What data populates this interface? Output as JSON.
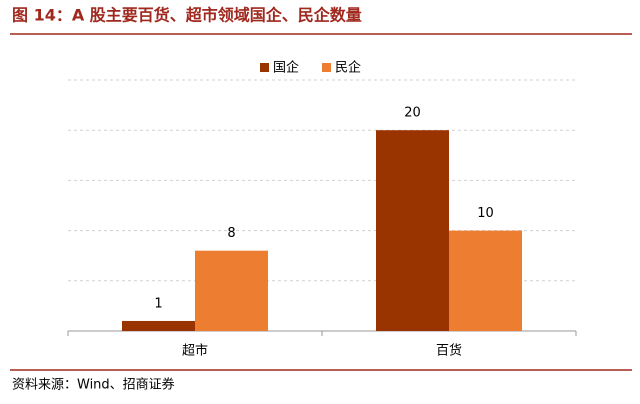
{
  "chart_data": {
    "type": "bar",
    "title": "图 14：A 股主要百货、超市领域国企、民企数量",
    "source": "资料来源：Wind、招商证券",
    "categories": [
      "超市",
      "百货"
    ],
    "series": [
      {
        "name": "国企",
        "color": "#993300",
        "values": [
          1,
          20
        ]
      },
      {
        "name": "民企",
        "color": "#ED7D31",
        "values": [
          8,
          10
        ]
      }
    ],
    "ylim": [
      0,
      25
    ],
    "yticks": [
      0,
      5,
      10,
      15,
      20,
      25
    ],
    "grid": true,
    "legend": "top"
  }
}
